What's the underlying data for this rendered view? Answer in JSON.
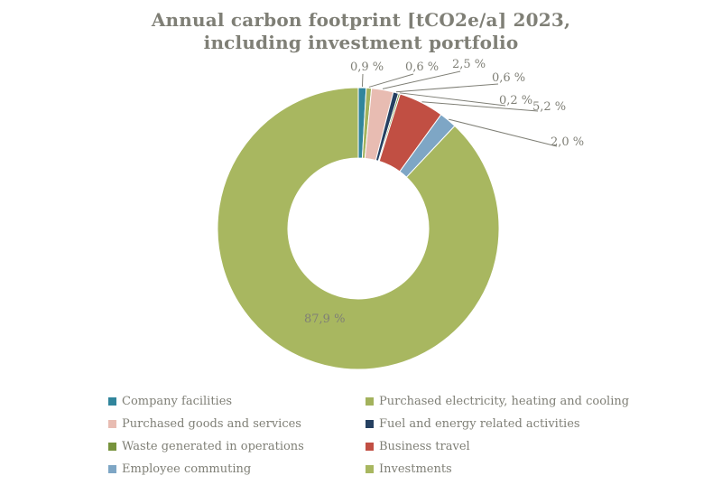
{
  "text_color": "#7f7f76",
  "chart_data": {
    "type": "pie",
    "subtype": "donut",
    "title_line1": "Annual carbon footprint [tCO2e/a] 2023,",
    "title_line2": "including investment portfolio",
    "unit": "tCO2e/a",
    "legend_position": "bottom",
    "legend_columns": 2,
    "series": [
      {
        "name": "Company facilities",
        "value": 0.9,
        "label": "0,9 %",
        "color": "#31859c"
      },
      {
        "name": "Purchased electricity, heating and cooling",
        "value": 0.6,
        "label": "0,6 %",
        "color": "#a3b25c"
      },
      {
        "name": "Purchased goods and services",
        "value": 2.5,
        "label": "2,5 %",
        "color": "#e8bcb2"
      },
      {
        "name": "Fuel and energy related activities",
        "value": 0.6,
        "label": "0,6 %",
        "color": "#254061"
      },
      {
        "name": "Waste generated in operations",
        "value": 0.2,
        "label": "0,2 %",
        "color": "#77933c"
      },
      {
        "name": "Business travel",
        "value": 5.2,
        "label": "5,2 %",
        "color": "#c14f43"
      },
      {
        "name": "Employee commuting",
        "value": 2.0,
        "label": "2,0 %",
        "color": "#7ea6c5"
      },
      {
        "name": "Investments",
        "value": 87.9,
        "label": "87,9 %",
        "color": "#a8b760"
      }
    ]
  }
}
